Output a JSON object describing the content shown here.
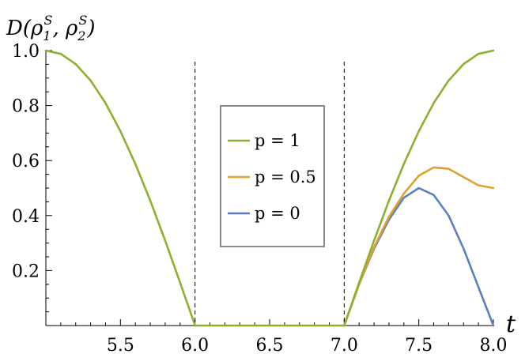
{
  "chart_data": {
    "type": "line",
    "title": "",
    "xlabel": "t",
    "ylabel": "D(ρ₁ˢ, ρ₂ˢ)",
    "ylabel_parts": {
      "main": "D(ρ",
      "sub1": "1",
      "sup1": "S",
      "mid": ", ρ",
      "sub2": "2",
      "sup2": "S",
      "end": ")"
    },
    "xlim": [
      5.0,
      8.0
    ],
    "ylim": [
      0.0,
      1.0
    ],
    "xticks": [
      5.5,
      6.0,
      6.5,
      7.0,
      7.5,
      8.0
    ],
    "xtick_labels": [
      "5.5",
      "6.0",
      "6.5",
      "7.0",
      "7.5",
      "8.0"
    ],
    "yticks": [
      0.2,
      0.4,
      0.6,
      0.8,
      1.0
    ],
    "ytick_labels": [
      "0.2",
      "0.4",
      "0.6",
      "0.8",
      "1.0"
    ],
    "vertical_dashed_lines": [
      6.0,
      7.0
    ],
    "grid": false,
    "legend_position": "center",
    "series": [
      {
        "name": "p = 1",
        "color": "#8db030",
        "x": [
          5.0,
          5.1,
          5.2,
          5.3,
          5.4,
          5.5,
          5.6,
          5.7,
          5.8,
          5.9,
          6.0,
          6.5,
          7.0,
          7.1,
          7.2,
          7.3,
          7.4,
          7.5,
          7.6,
          7.7,
          7.8,
          7.9,
          8.0
        ],
        "y": [
          1.0,
          0.988,
          0.951,
          0.891,
          0.809,
          0.707,
          0.588,
          0.454,
          0.309,
          0.156,
          0.0,
          0.0,
          0.0,
          0.156,
          0.309,
          0.454,
          0.588,
          0.707,
          0.809,
          0.891,
          0.951,
          0.988,
          1.0
        ]
      },
      {
        "name": "p = 0.5",
        "color": "#e0a030",
        "x": [
          7.0,
          7.1,
          7.2,
          7.3,
          7.4,
          7.5,
          7.6,
          7.7,
          7.8,
          7.9,
          8.0
        ],
        "y": [
          0.0,
          0.15,
          0.285,
          0.395,
          0.48,
          0.545,
          0.575,
          0.57,
          0.54,
          0.51,
          0.5
        ]
      },
      {
        "name": "p = 0",
        "color": "#5b7fbf",
        "x": [
          7.0,
          7.1,
          7.2,
          7.3,
          7.4,
          7.5,
          7.6,
          7.7,
          7.8,
          7.9,
          8.0
        ],
        "y": [
          0.0,
          0.15,
          0.28,
          0.385,
          0.465,
          0.5,
          0.475,
          0.4,
          0.28,
          0.14,
          0.0
        ]
      }
    ]
  }
}
